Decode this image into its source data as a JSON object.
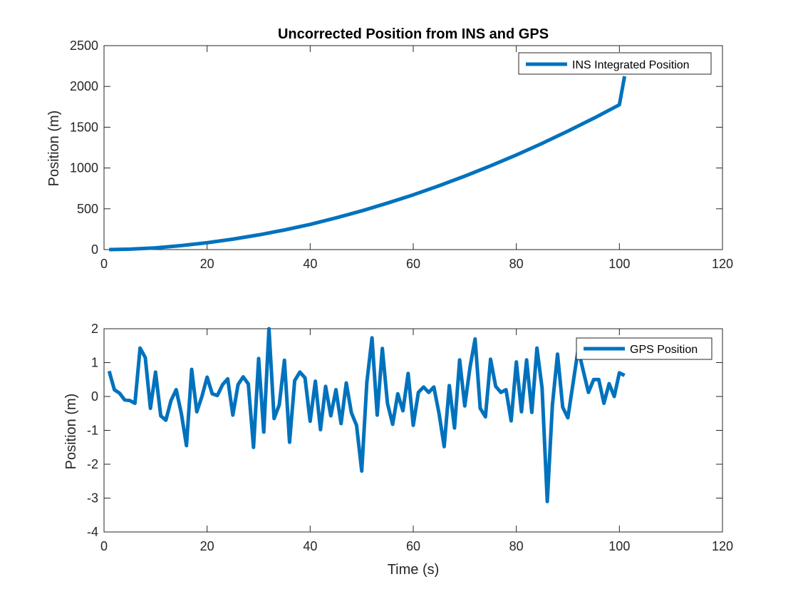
{
  "colors": {
    "series": "#0072BD",
    "axis": "#262626"
  },
  "chart_data": [
    {
      "type": "line",
      "title": "Uncorrected Position from INS and GPS",
      "xlabel": "",
      "ylabel": "Position (m)",
      "xlim": [
        0,
        120
      ],
      "ylim": [
        0,
        2500
      ],
      "xticks": [
        0,
        20,
        40,
        60,
        80,
        100,
        120
      ],
      "yticks": [
        0,
        500,
        1000,
        1500,
        2000,
        2500
      ],
      "grid": false,
      "legend": {
        "placement": "top-right",
        "entries": [
          "INS Integrated Position"
        ]
      },
      "series": [
        {
          "name": "INS Integrated Position",
          "x": [
            1,
            5,
            10,
            15,
            20,
            25,
            30,
            35,
            40,
            45,
            50,
            55,
            60,
            65,
            70,
            75,
            80,
            85,
            90,
            95,
            100,
            101
          ],
          "y": [
            0,
            5,
            21,
            49,
            84,
            128,
            180,
            240,
            309,
            388,
            475,
            570,
            671,
            782,
            900,
            1026,
            1160,
            1302,
            1452,
            1609,
            1775,
            2125
          ]
        }
      ]
    },
    {
      "type": "line",
      "title": "",
      "xlabel": "Time (s)",
      "ylabel": "Position (m)",
      "xlim": [
        0,
        120
      ],
      "ylim": [
        -4,
        2
      ],
      "xticks": [
        0,
        20,
        40,
        60,
        80,
        100,
        120
      ],
      "yticks": [
        -4,
        -3,
        -2,
        -1,
        0,
        1,
        2
      ],
      "grid": false,
      "legend": {
        "placement": "top-right",
        "entries": [
          "GPS Position"
        ]
      },
      "series": [
        {
          "name": "GPS Position",
          "x": [
            1,
            2,
            3,
            4,
            5,
            6,
            7,
            8,
            9,
            10,
            11,
            12,
            13,
            14,
            15,
            16,
            17,
            18,
            19,
            20,
            21,
            22,
            23,
            24,
            25,
            26,
            27,
            28,
            29,
            30,
            31,
            32,
            33,
            34,
            35,
            36,
            37,
            38,
            39,
            40,
            41,
            42,
            43,
            44,
            45,
            46,
            47,
            48,
            49,
            50,
            51,
            52,
            53,
            54,
            55,
            56,
            57,
            58,
            59,
            60,
            61,
            62,
            63,
            64,
            65,
            66,
            67,
            68,
            69,
            70,
            71,
            72,
            73,
            74,
            75,
            76,
            77,
            78,
            79,
            80,
            81,
            82,
            83,
            84,
            85,
            86,
            87,
            88,
            89,
            90,
            91,
            92,
            93,
            94,
            95,
            96,
            97,
            98,
            99,
            100,
            101
          ],
          "y": [
            0.75,
            0.2,
            0.1,
            -0.1,
            -0.12,
            -0.2,
            1.43,
            1.15,
            -0.35,
            0.72,
            -0.57,
            -0.7,
            -0.12,
            0.2,
            -0.5,
            -1.45,
            0.8,
            -0.45,
            0.0,
            0.57,
            0.08,
            0.03,
            0.35,
            0.52,
            -0.55,
            0.35,
            0.58,
            0.37,
            -1.5,
            1.12,
            -1.05,
            2.0,
            -0.65,
            -0.25,
            1.07,
            -1.35,
            0.47,
            0.72,
            0.55,
            -0.73,
            0.45,
            -0.98,
            0.3,
            -0.57,
            0.2,
            -0.8,
            0.4,
            -0.48,
            -0.85,
            -2.2,
            0.42,
            1.73,
            -0.55,
            1.42,
            -0.2,
            -0.82,
            0.08,
            -0.42,
            0.68,
            -0.85,
            0.12,
            0.28,
            0.12,
            0.28,
            -0.5,
            -1.48,
            0.32,
            -0.93,
            1.08,
            -0.28,
            0.85,
            1.7,
            -0.35,
            -0.6,
            1.1,
            0.3,
            0.12,
            0.2,
            -0.72,
            1.02,
            -0.45,
            1.08,
            -0.47,
            1.43,
            0.25,
            -3.1,
            -0.25,
            1.25,
            -0.32,
            -0.63,
            0.38,
            1.4,
            0.75,
            0.12,
            0.5,
            0.5,
            -0.2,
            0.38,
            0.0,
            0.7,
            0.62
          ]
        }
      ]
    }
  ]
}
